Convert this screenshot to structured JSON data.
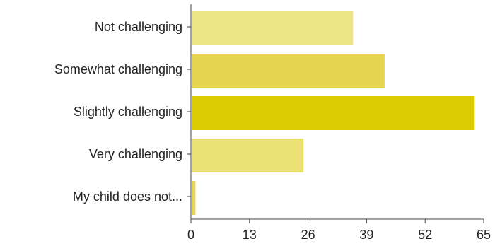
{
  "chart_data": {
    "type": "bar",
    "orientation": "horizontal",
    "categories": [
      "Not challenging",
      "Somewhat challenging",
      "Slightly challenging",
      "Very challenging",
      "My child does not..."
    ],
    "values": [
      36,
      43,
      63,
      25,
      1
    ],
    "colors": [
      "#ece486",
      "#e5d54e",
      "#dccb00",
      "#ebe074",
      "#e5d54e"
    ],
    "xlim": [
      0,
      65
    ],
    "xticks": [
      0,
      13,
      26,
      39,
      52,
      65
    ],
    "title": "",
    "xlabel": "",
    "ylabel": "",
    "grid": false
  }
}
